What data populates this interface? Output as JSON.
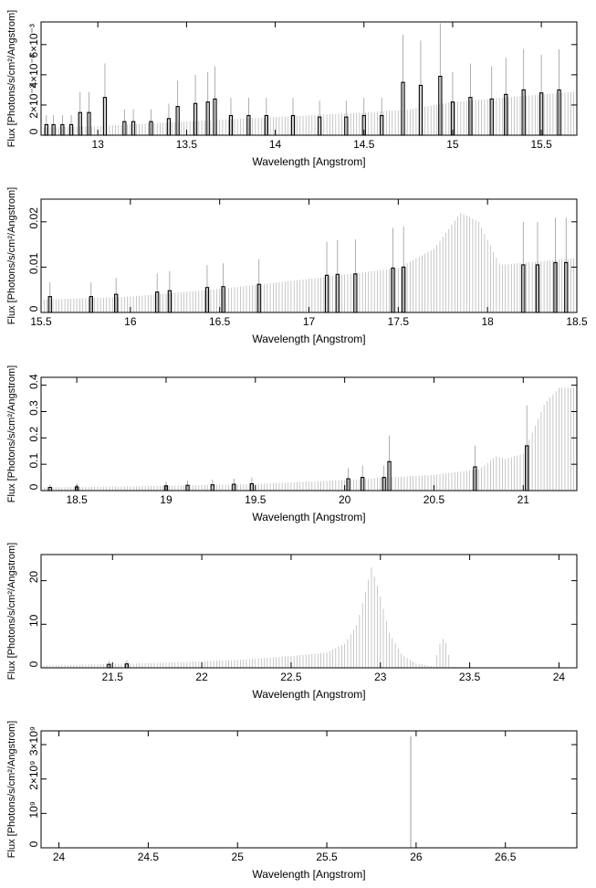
{
  "chart_data": [
    {
      "type": "bar",
      "xlabel": "Wavelength [Angstrom]",
      "ylabel": "Flux [Photons/s/cm²/Angstrom]",
      "xlim": [
        12.68,
        15.7
      ],
      "ylim": [
        0,
        0.0075
      ],
      "x_ticks": [
        {
          "v": 13,
          "label": "13"
        },
        {
          "v": 13.5,
          "label": "13.5"
        },
        {
          "v": 14,
          "label": "14"
        },
        {
          "v": 14.5,
          "label": "14.5"
        },
        {
          "v": 15,
          "label": "15"
        },
        {
          "v": 15.5,
          "label": "15.5"
        }
      ],
      "y_ticks": [
        {
          "v": 0,
          "label": "0"
        },
        {
          "v": 0.002,
          "label": "2×10⁻³"
        },
        {
          "v": 0.004,
          "label": "4×10⁻³"
        },
        {
          "v": 0.006,
          "label": "6×10⁻³"
        }
      ],
      "model": [
        [
          12.68,
          0.0005
        ],
        [
          13.0,
          0.0006
        ],
        [
          13.5,
          0.0009
        ],
        [
          14.0,
          0.0012
        ],
        [
          14.5,
          0.0015
        ],
        [
          14.75,
          0.0017
        ],
        [
          15.0,
          0.0022
        ],
        [
          15.3,
          0.0025
        ],
        [
          15.7,
          0.0029
        ]
      ],
      "data_points": [
        {
          "x": 12.71,
          "y": 0.0007
        },
        {
          "x": 12.75,
          "y": 0.0007
        },
        {
          "x": 12.8,
          "y": 0.0007
        },
        {
          "x": 12.85,
          "y": 0.0007
        },
        {
          "x": 12.9,
          "y": 0.0015
        },
        {
          "x": 12.95,
          "y": 0.0015
        },
        {
          "x": 13.04,
          "y": 0.0025
        },
        {
          "x": 13.15,
          "y": 0.0009
        },
        {
          "x": 13.2,
          "y": 0.0009
        },
        {
          "x": 13.3,
          "y": 0.0009
        },
        {
          "x": 13.4,
          "y": 0.0011
        },
        {
          "x": 13.45,
          "y": 0.0019
        },
        {
          "x": 13.55,
          "y": 0.0021
        },
        {
          "x": 13.62,
          "y": 0.0022
        },
        {
          "x": 13.66,
          "y": 0.0024
        },
        {
          "x": 13.75,
          "y": 0.0013
        },
        {
          "x": 13.85,
          "y": 0.0013
        },
        {
          "x": 13.95,
          "y": 0.0013
        },
        {
          "x": 14.1,
          "y": 0.0013
        },
        {
          "x": 14.25,
          "y": 0.0012
        },
        {
          "x": 14.4,
          "y": 0.0012
        },
        {
          "x": 14.5,
          "y": 0.0013
        },
        {
          "x": 14.6,
          "y": 0.0013
        },
        {
          "x": 14.72,
          "y": 0.0035
        },
        {
          "x": 14.82,
          "y": 0.0033
        },
        {
          "x": 14.93,
          "y": 0.0039
        },
        {
          "x": 15.0,
          "y": 0.0022
        },
        {
          "x": 15.1,
          "y": 0.0025
        },
        {
          "x": 15.22,
          "y": 0.0024
        },
        {
          "x": 15.3,
          "y": 0.0027
        },
        {
          "x": 15.4,
          "y": 0.003
        },
        {
          "x": 15.5,
          "y": 0.0028
        },
        {
          "x": 15.6,
          "y": 0.003
        }
      ]
    },
    {
      "type": "bar",
      "xlabel": "Wavelength [Angstrom]",
      "ylabel": "Flux [Photons/s/cm²/Angstrom]",
      "xlim": [
        15.5,
        18.5
      ],
      "ylim": [
        0,
        0.025
      ],
      "x_ticks": [
        {
          "v": 15.5,
          "label": "15.5"
        },
        {
          "v": 16,
          "label": "16"
        },
        {
          "v": 16.5,
          "label": "16.5"
        },
        {
          "v": 17,
          "label": "17"
        },
        {
          "v": 17.5,
          "label": "17.5"
        },
        {
          "v": 18,
          "label": "18"
        },
        {
          "v": 18.5,
          "label": "18.5"
        }
      ],
      "y_ticks": [
        {
          "v": 0,
          "label": "0"
        },
        {
          "v": 0.01,
          "label": "0.01"
        },
        {
          "v": 0.02,
          "label": "0.02"
        }
      ],
      "model": [
        [
          15.5,
          0.0028
        ],
        [
          16.0,
          0.0035
        ],
        [
          16.5,
          0.0052
        ],
        [
          17.0,
          0.0074
        ],
        [
          17.5,
          0.0098
        ],
        [
          17.7,
          0.014
        ],
        [
          17.85,
          0.022
        ],
        [
          17.9,
          0.021
        ],
        [
          17.95,
          0.02
        ],
        [
          18.0,
          0.016
        ],
        [
          18.07,
          0.0105
        ],
        [
          18.5,
          0.012
        ]
      ],
      "data_points": [
        {
          "x": 15.55,
          "y": 0.0035
        },
        {
          "x": 15.78,
          "y": 0.0035
        },
        {
          "x": 15.92,
          "y": 0.004
        },
        {
          "x": 16.15,
          "y": 0.0045
        },
        {
          "x": 16.22,
          "y": 0.0048
        },
        {
          "x": 16.43,
          "y": 0.0055
        },
        {
          "x": 16.52,
          "y": 0.0057
        },
        {
          "x": 16.72,
          "y": 0.0062
        },
        {
          "x": 17.1,
          "y": 0.0082
        },
        {
          "x": 17.16,
          "y": 0.0084
        },
        {
          "x": 17.26,
          "y": 0.0085
        },
        {
          "x": 17.47,
          "y": 0.0098
        },
        {
          "x": 17.53,
          "y": 0.01
        },
        {
          "x": 18.2,
          "y": 0.0105
        },
        {
          "x": 18.28,
          "y": 0.0105
        },
        {
          "x": 18.38,
          "y": 0.011
        },
        {
          "x": 18.44,
          "y": 0.011
        }
      ]
    },
    {
      "type": "bar",
      "xlabel": "Wavelength [Angstrom]",
      "ylabel": "Flux [Photons/s/cm²/Angstrom]",
      "xlim": [
        18.3,
        21.3
      ],
      "ylim": [
        0,
        0.43
      ],
      "x_ticks": [
        {
          "v": 18.5,
          "label": "18.5"
        },
        {
          "v": 19,
          "label": "19"
        },
        {
          "v": 19.5,
          "label": "19.5"
        },
        {
          "v": 20,
          "label": "20"
        },
        {
          "v": 20.5,
          "label": "20.5"
        },
        {
          "v": 21,
          "label": "21"
        }
      ],
      "y_ticks": [
        {
          "v": 0,
          "label": "0"
        },
        {
          "v": 0.1,
          "label": "0.1"
        },
        {
          "v": 0.2,
          "label": "0.2"
        },
        {
          "v": 0.3,
          "label": "0.3"
        },
        {
          "v": 0.4,
          "label": "0.4"
        }
      ],
      "model": [
        [
          18.3,
          0.012
        ],
        [
          19.0,
          0.018
        ],
        [
          19.5,
          0.025
        ],
        [
          20.0,
          0.04
        ],
        [
          20.5,
          0.06
        ],
        [
          20.75,
          0.08
        ],
        [
          20.85,
          0.13
        ],
        [
          20.9,
          0.12
        ],
        [
          21.0,
          0.14
        ],
        [
          21.05,
          0.22
        ],
        [
          21.12,
          0.33
        ],
        [
          21.2,
          0.39
        ],
        [
          21.3,
          0.39
        ]
      ],
      "data_points": [
        {
          "x": 18.35,
          "y": 0.012
        },
        {
          "x": 18.5,
          "y": 0.014
        },
        {
          "x": 19.0,
          "y": 0.018
        },
        {
          "x": 19.12,
          "y": 0.02
        },
        {
          "x": 19.26,
          "y": 0.022
        },
        {
          "x": 19.38,
          "y": 0.024
        },
        {
          "x": 19.48,
          "y": 0.026
        },
        {
          "x": 20.02,
          "y": 0.045
        },
        {
          "x": 20.1,
          "y": 0.05
        },
        {
          "x": 20.22,
          "y": 0.05
        },
        {
          "x": 20.25,
          "y": 0.11
        },
        {
          "x": 20.73,
          "y": 0.09
        },
        {
          "x": 21.02,
          "y": 0.17
        }
      ]
    },
    {
      "type": "bar",
      "xlabel": "Wavelength [Angstrom]",
      "ylabel": "Flux [Photons/s/cm²/Angstrom]",
      "xlim": [
        21.1,
        24.1
      ],
      "ylim": [
        0,
        26
      ],
      "x_ticks": [
        {
          "v": 21.5,
          "label": "21.5"
        },
        {
          "v": 22,
          "label": "22"
        },
        {
          "v": 22.5,
          "label": "22.5"
        },
        {
          "v": 23,
          "label": "23"
        },
        {
          "v": 23.5,
          "label": "23.5"
        },
        {
          "v": 24,
          "label": "24"
        }
      ],
      "y_ticks": [
        {
          "v": 0,
          "label": "0"
        },
        {
          "v": 10,
          "label": "10"
        },
        {
          "v": 20,
          "label": "20"
        }
      ],
      "model": [
        [
          21.1,
          0.5
        ],
        [
          21.8,
          1.2
        ],
        [
          22.2,
          1.8
        ],
        [
          22.5,
          2.7
        ],
        [
          22.7,
          3.5
        ],
        [
          22.8,
          5.5
        ],
        [
          22.87,
          10.0
        ],
        [
          22.92,
          18.0
        ],
        [
          22.95,
          23.0
        ],
        [
          22.99,
          18.0
        ],
        [
          23.05,
          8.0
        ],
        [
          23.12,
          3.0
        ],
        [
          23.2,
          1.0
        ],
        [
          23.3,
          0.3
        ],
        [
          23.34,
          6.5
        ],
        [
          23.36,
          6.8
        ],
        [
          23.4,
          0.2
        ],
        [
          23.6,
          0.05
        ],
        [
          24.1,
          0.0
        ]
      ],
      "data_points": [
        {
          "x": 21.48,
          "y": 0.8
        },
        {
          "x": 21.58,
          "y": 0.9
        }
      ]
    },
    {
      "type": "bar",
      "xlabel": "Wavelength [Angstrom]",
      "ylabel": "Flux [Photons/s/cm²/Angstrom]",
      "xlim": [
        23.9,
        26.9
      ],
      "ylim": [
        0,
        3400000000
      ],
      "x_ticks": [
        {
          "v": 24,
          "label": "24"
        },
        {
          "v": 24.5,
          "label": "24.5"
        },
        {
          "v": 25,
          "label": "25"
        },
        {
          "v": 25.5,
          "label": "25.5"
        },
        {
          "v": 26,
          "label": "26"
        },
        {
          "v": 26.5,
          "label": "26.5"
        }
      ],
      "y_ticks": [
        {
          "v": 0,
          "label": "0"
        },
        {
          "v": 1000000000,
          "label": "10⁹"
        },
        {
          "v": 2000000000,
          "label": "2×10⁹"
        },
        {
          "v": 3000000000,
          "label": "3×10⁹"
        }
      ],
      "model": [],
      "spikes": [
        {
          "x": 25.97,
          "y": 3250000000
        }
      ],
      "data_points": []
    }
  ]
}
